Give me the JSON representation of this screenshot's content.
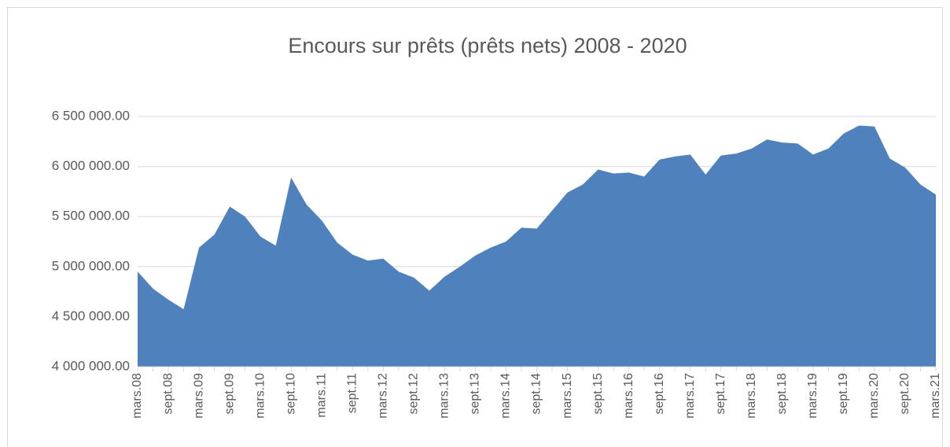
{
  "chart_data": {
    "type": "area",
    "title": "Encours sur prêts (prêts nets) 2008 - 2020",
    "categories": [
      "mars.08",
      null,
      "sept.08",
      null,
      "mars.09",
      null,
      "sept.09",
      null,
      "mars.10",
      null,
      "sept.10",
      null,
      "mars.11",
      null,
      "sept.11",
      null,
      "mars.12",
      null,
      "sept.12",
      null,
      "mars.13",
      null,
      "sept.13",
      null,
      "mars.14",
      null,
      "sept.14",
      null,
      "mars.15",
      null,
      "sept.15",
      null,
      "mars.16",
      null,
      "sept.16",
      null,
      "mars.17",
      null,
      "sept.17",
      null,
      "mars.18",
      null,
      "sept.18",
      null,
      "mars.19",
      null,
      "sept.19",
      null,
      "mars.20",
      null,
      "sept.20",
      null,
      "mars.21"
    ],
    "values": [
      4950000,
      4780000,
      4670000,
      4575000,
      5190000,
      5320000,
      5600000,
      5500000,
      5300000,
      5210000,
      5890000,
      5620000,
      5460000,
      5240000,
      5120000,
      5060000,
      5080000,
      4950000,
      4890000,
      4760000,
      4900000,
      5000000,
      5110000,
      5190000,
      5250000,
      5390000,
      5380000,
      5560000,
      5740000,
      5820000,
      5970000,
      5930000,
      5940000,
      5900000,
      6070000,
      6100000,
      6120000,
      5920000,
      6110000,
      6130000,
      6180000,
      6270000,
      6240000,
      6230000,
      6120000,
      6180000,
      6330000,
      6410000,
      6400000,
      6080000,
      5990000,
      5820000,
      5720000
    ],
    "color": "#4f81bd",
    "ylim": [
      4000000,
      6500000
    ],
    "yticks": [
      {
        "value": 4000000,
        "label": "4 000 000.00"
      },
      {
        "value": 4500000,
        "label": "4 500 000.00"
      },
      {
        "value": 5000000,
        "label": "5 000 000.00"
      },
      {
        "value": 5500000,
        "label": "5 500 000.00"
      },
      {
        "value": 6000000,
        "label": "6 000 000.00"
      },
      {
        "value": 6500000,
        "label": "6 500 000.00"
      }
    ],
    "grid": true
  }
}
